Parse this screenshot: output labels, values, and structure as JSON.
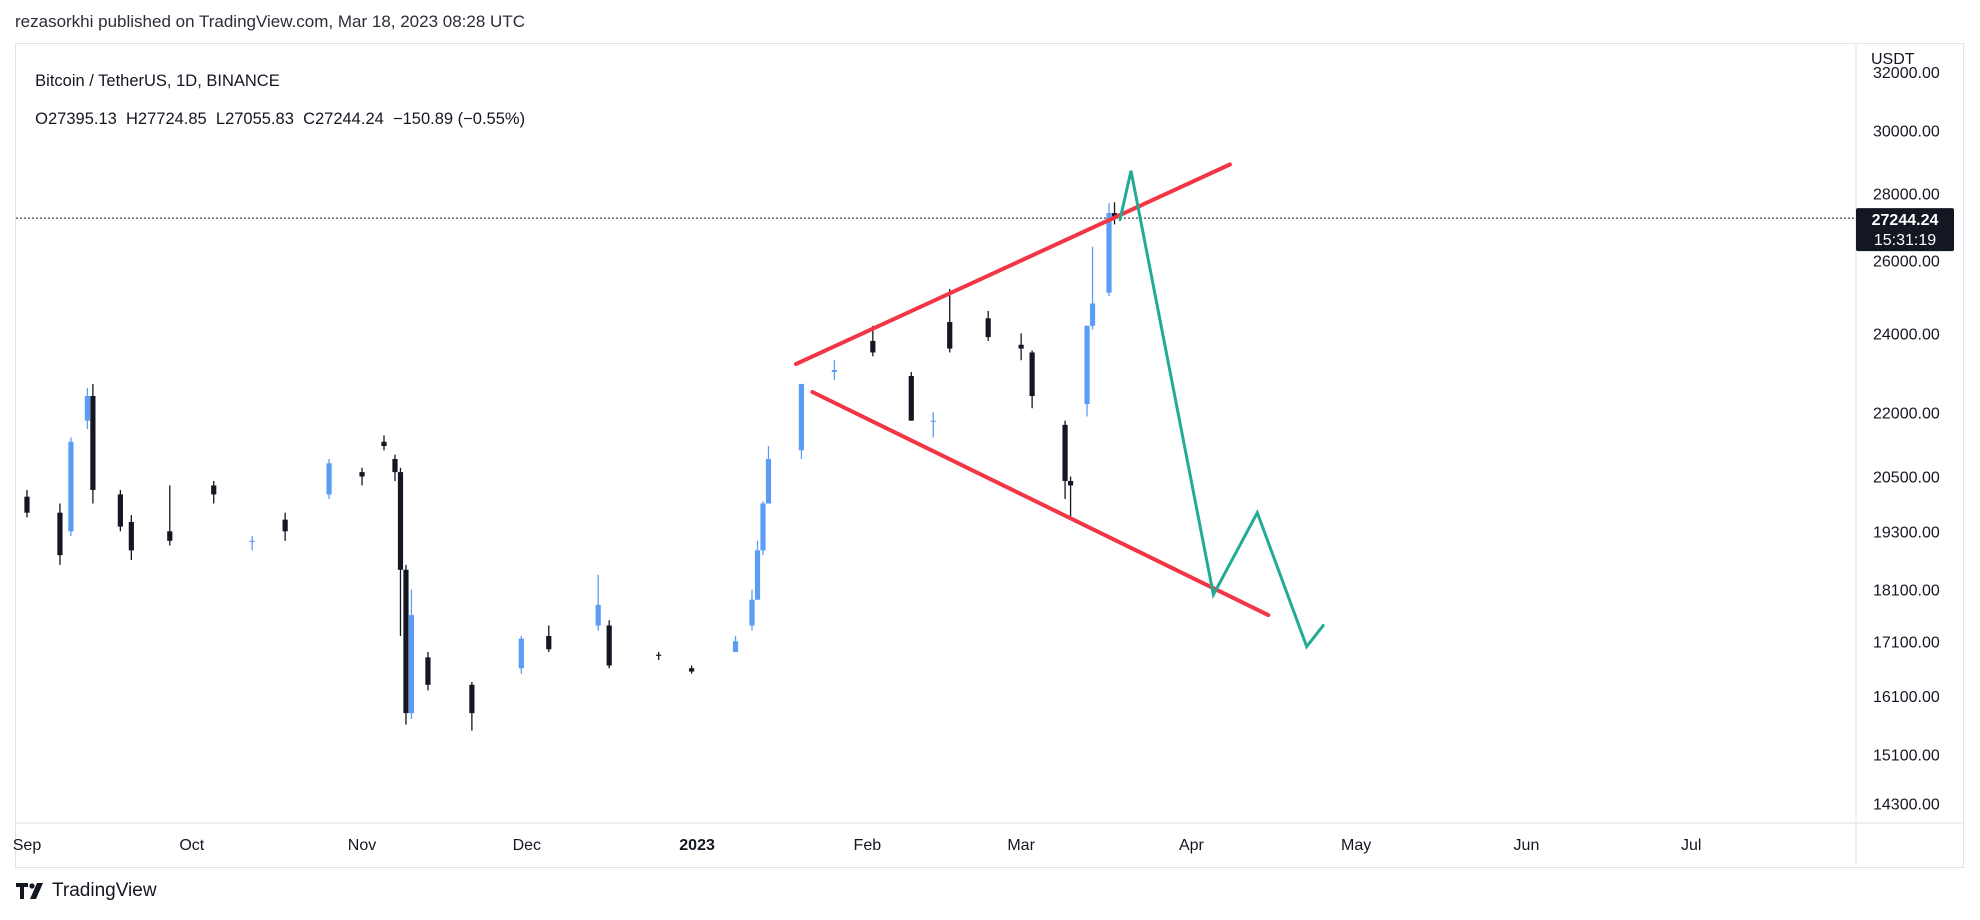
{
  "publisher_line": "rezasorkhi published on TradingView.com, Mar 18, 2023 08:28 UTC",
  "legend": {
    "symbol": "Bitcoin / TetherUS, 1D, BINANCE",
    "ohlc": "O27395.13  H27724.85  L27055.83  C27244.24  −150.89 (−0.55%)"
  },
  "price_axis": {
    "unit": "USDT",
    "ticks": [
      "32000.00",
      "30000.00",
      "28000.00",
      "26000.00",
      "24000.00",
      "22000.00",
      "20500.00",
      "19300.00",
      "18100.00",
      "17100.00",
      "16100.00",
      "15100.00",
      "14300.00"
    ]
  },
  "time_axis": {
    "ticks": [
      "Sep",
      "Oct",
      "Nov",
      "Dec",
      "2023",
      "Feb",
      "Mar",
      "Apr",
      "May",
      "Jun",
      "Jul"
    ]
  },
  "last_price": {
    "price": "27244.24",
    "countdown": "15:31:19"
  },
  "footer": {
    "brand": "TradingView"
  },
  "colors": {
    "up": "#5b9cf6",
    "down": "#131722",
    "trend": "#f23645",
    "projection": "#22ab94",
    "grid": "#e0e3eb",
    "badge_bg": "#131722",
    "badge_text": "#ffffff"
  },
  "chart_data": {
    "type": "candlestick",
    "title": "Bitcoin / TetherUS, 1D, BINANCE",
    "yscale": "log",
    "ylim": [
      14000,
      33000
    ],
    "x_range": [
      "2022-08-30",
      "2023-07-31"
    ],
    "last_close": 27244.24,
    "series": [
      {
        "name": "Bitcoin / TetherUS",
        "columns": [
          "date",
          "open",
          "high",
          "low",
          "close"
        ],
        "points": [
          [
            "2022-09-01",
            20050,
            20200,
            19600,
            19700
          ],
          [
            "2022-09-07",
            19700,
            19900,
            18600,
            18800
          ],
          [
            "2022-09-09",
            19300,
            21400,
            19200,
            21300
          ],
          [
            "2022-09-12",
            21800,
            22600,
            21600,
            22400
          ],
          [
            "2022-09-13",
            22400,
            22700,
            19900,
            20200
          ],
          [
            "2022-09-18",
            20100,
            20200,
            19300,
            19400
          ],
          [
            "2022-09-20",
            19500,
            19650,
            18700,
            18900
          ],
          [
            "2022-09-27",
            19300,
            20300,
            19000,
            19100
          ],
          [
            "2022-10-05",
            20300,
            20400,
            19900,
            20100
          ],
          [
            "2022-10-12",
            19100,
            19200,
            18900,
            19100
          ],
          [
            "2022-10-18",
            19550,
            19700,
            19100,
            19300
          ],
          [
            "2022-10-26",
            20100,
            20900,
            20000,
            20800
          ],
          [
            "2022-11-01",
            20600,
            20700,
            20300,
            20500
          ],
          [
            "2022-11-05",
            21300,
            21450,
            21100,
            21200
          ],
          [
            "2022-11-07",
            20900,
            21000,
            20400,
            20600
          ],
          [
            "2022-11-08",
            20600,
            20700,
            17200,
            18500
          ],
          [
            "2022-11-09",
            18500,
            18600,
            15600,
            15800
          ],
          [
            "2022-11-10",
            15800,
            18100,
            15700,
            17600
          ],
          [
            "2022-11-13",
            16800,
            16900,
            16200,
            16300
          ],
          [
            "2022-11-21",
            16300,
            16350,
            15500,
            15800
          ],
          [
            "2022-11-30",
            16600,
            17200,
            16500,
            17150
          ],
          [
            "2022-12-05",
            17200,
            17400,
            16900,
            16950
          ],
          [
            "2022-12-14",
            17400,
            18400,
            17300,
            17800
          ],
          [
            "2022-12-16",
            17400,
            17500,
            16600,
            16650
          ],
          [
            "2022-12-25",
            16850,
            16900,
            16750,
            16830
          ],
          [
            "2022-12-31",
            16600,
            16650,
            16500,
            16540
          ],
          [
            "2023-01-08",
            16900,
            17200,
            16900,
            17100
          ],
          [
            "2023-01-11",
            17400,
            18100,
            17300,
            17900
          ],
          [
            "2023-01-12",
            17900,
            19100,
            17900,
            18900
          ],
          [
            "2023-01-13",
            18900,
            19950,
            18800,
            19900
          ],
          [
            "2023-01-14",
            19900,
            21200,
            19900,
            20900
          ],
          [
            "2023-01-20",
            21100,
            22500,
            20900,
            22700
          ],
          [
            "2023-01-26",
            23000,
            23300,
            22800,
            23050
          ],
          [
            "2023-02-02",
            23800,
            24200,
            23400,
            23500
          ],
          [
            "2023-02-09",
            22900,
            23000,
            21800,
            21800
          ],
          [
            "2023-02-13",
            21800,
            22000,
            21400,
            21800
          ],
          [
            "2023-02-16",
            24300,
            25200,
            23500,
            23600
          ],
          [
            "2023-02-23",
            24400,
            24600,
            23800,
            23900
          ],
          [
            "2023-03-01",
            23700,
            24000,
            23300,
            23600
          ],
          [
            "2023-03-03",
            23500,
            23550,
            22100,
            22400
          ],
          [
            "2023-03-09",
            21700,
            21800,
            20000,
            20400
          ],
          [
            "2023-03-10",
            20400,
            20500,
            19600,
            20300
          ],
          [
            "2023-03-13",
            22200,
            24200,
            21900,
            24200
          ],
          [
            "2023-03-14",
            24200,
            26400,
            24100,
            24800
          ],
          [
            "2023-03-17",
            25100,
            27700,
            25000,
            27400
          ],
          [
            "2023-03-18",
            27395.13,
            27724.85,
            27055.83,
            27244.24
          ]
        ]
      }
    ],
    "drawings": [
      {
        "type": "trendline",
        "color": "red",
        "points": [
          [
            "2023-01-19",
            23200
          ],
          [
            "2023-04-08",
            28900
          ]
        ]
      },
      {
        "type": "trendline",
        "color": "red",
        "points": [
          [
            "2023-01-22",
            22500
          ],
          [
            "2023-04-15",
            17600
          ]
        ]
      },
      {
        "type": "path",
        "color": "green",
        "points": [
          [
            "2023-03-19",
            27200
          ],
          [
            "2023-03-21",
            28700
          ],
          [
            "2023-04-05",
            18000
          ],
          [
            "2023-04-13",
            19700
          ],
          [
            "2023-04-22",
            17000
          ],
          [
            "2023-04-25",
            17400
          ]
        ]
      }
    ]
  }
}
